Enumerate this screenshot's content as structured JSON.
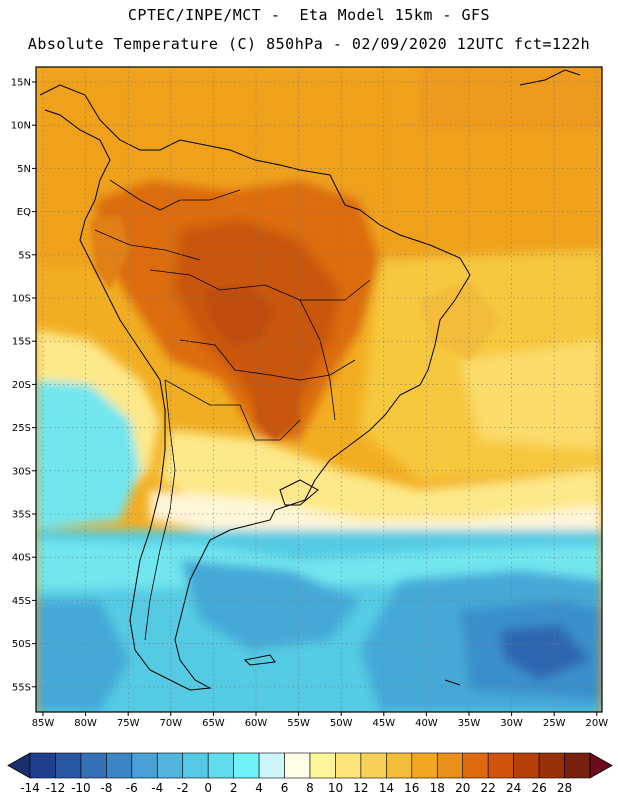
{
  "title_line1": "CPTEC/INPE/MCT -  Eta Model 15km - GFS",
  "title_line2": "Absolute Temperature (C) 850hPa - 02/09/2020 12UTC fct=122h",
  "lat_labels": [
    "15N",
    "10N",
    "5N",
    "EQ",
    "5S",
    "10S",
    "15S",
    "20S",
    "25S",
    "30S",
    "35S",
    "40S",
    "45S",
    "50S",
    "55S"
  ],
  "lon_labels": [
    "85W",
    "80W",
    "75W",
    "70W",
    "65W",
    "60W",
    "55W",
    "50W",
    "45W",
    "40W",
    "35W",
    "30W",
    "25W",
    "20W"
  ],
  "colorbar": {
    "labels": [
      "-14",
      "-12",
      "-10",
      "-8",
      "-6",
      "-4",
      "-2",
      "0",
      "2",
      "4",
      "6",
      "8",
      "10",
      "12",
      "14",
      "16",
      "18",
      "20",
      "22",
      "24",
      "26",
      "28"
    ],
    "colors": [
      "#1f3f8f",
      "#2a57a3",
      "#3470b5",
      "#3d86c6",
      "#4aa0d6",
      "#52b5e0",
      "#55c8e6",
      "#5fdcee",
      "#6ff2f7",
      "#cdf6fb",
      "#fffde6",
      "#fff59a",
      "#fde57a",
      "#f7d157",
      "#f3bc3a",
      "#f0a822",
      "#e8901a",
      "#df6a0d",
      "#cf530a",
      "#b5400a",
      "#993008",
      "#772010"
    ],
    "under_color": "#1a2f6e",
    "over_color": "#6a0c1c"
  },
  "palette": {
    "ocean_warm": "#f2ae23",
    "ocean_warmer": "#ee9a1d",
    "continent_hot": "#d8650f",
    "continent_hotter": "#c6540b",
    "subtrop": "#f6c83c",
    "cool_yellow": "#fde98a",
    "cream": "#fff6d8",
    "cyan_light": "#71e6ef",
    "cyan": "#55cbe3",
    "blue_mid": "#45a9d8",
    "blue_deep": "#3b8fcb",
    "navy": "#2d66b0",
    "coast": "#000000"
  }
}
